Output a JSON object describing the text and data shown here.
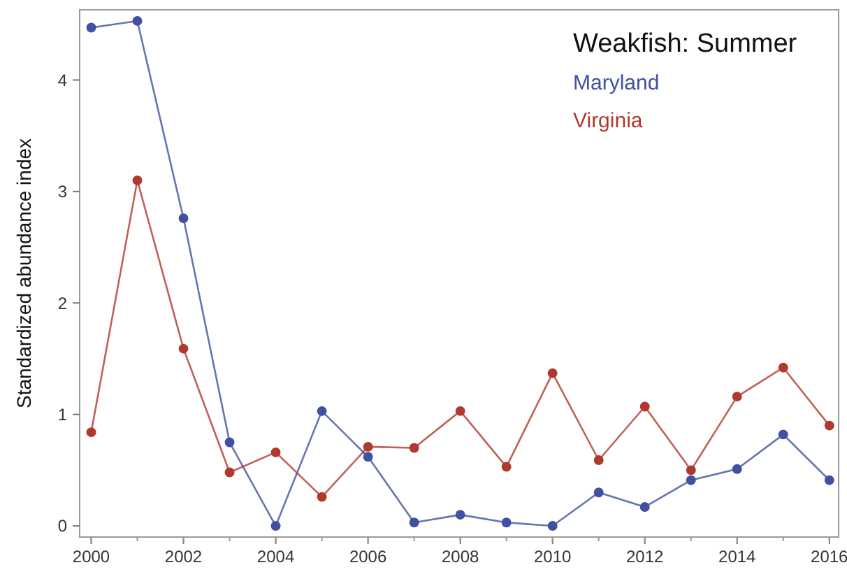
{
  "chart_data": {
    "type": "line",
    "legend_title": "Weakfish: Summer",
    "ylabel": "Standardized abundance index",
    "x": [
      2000,
      2001,
      2002,
      2003,
      2004,
      2005,
      2006,
      2007,
      2008,
      2009,
      2010,
      2011,
      2012,
      2013,
      2014,
      2015,
      2016
    ],
    "series": [
      {
        "name": "Maryland",
        "color": "#3f51a0",
        "values": [
          4.47,
          4.53,
          2.76,
          0.75,
          0,
          1.03,
          0.62,
          0.03,
          0.1,
          0.03,
          0,
          0.3,
          0.17,
          0.41,
          0.51,
          0.82,
          0.41
        ]
      },
      {
        "name": "Virginia",
        "color": "#b0392e",
        "values": [
          0.84,
          3.1,
          1.59,
          0.48,
          0.66,
          0.26,
          0.71,
          0.7,
          1.03,
          0.53,
          1.37,
          0.59,
          1.07,
          0.5,
          1.16,
          1.42,
          0.9
        ]
      }
    ],
    "xlim": [
      1999.75,
      2016.2
    ],
    "ylim": [
      -0.1,
      4.63
    ],
    "xticks": [
      2000,
      2002,
      2004,
      2006,
      2008,
      2010,
      2012,
      2014,
      2016
    ],
    "yticks": [
      0,
      1,
      2,
      3,
      4
    ],
    "grid": false,
    "legend": "top right",
    "marker": "circle",
    "line_style": "solid"
  }
}
